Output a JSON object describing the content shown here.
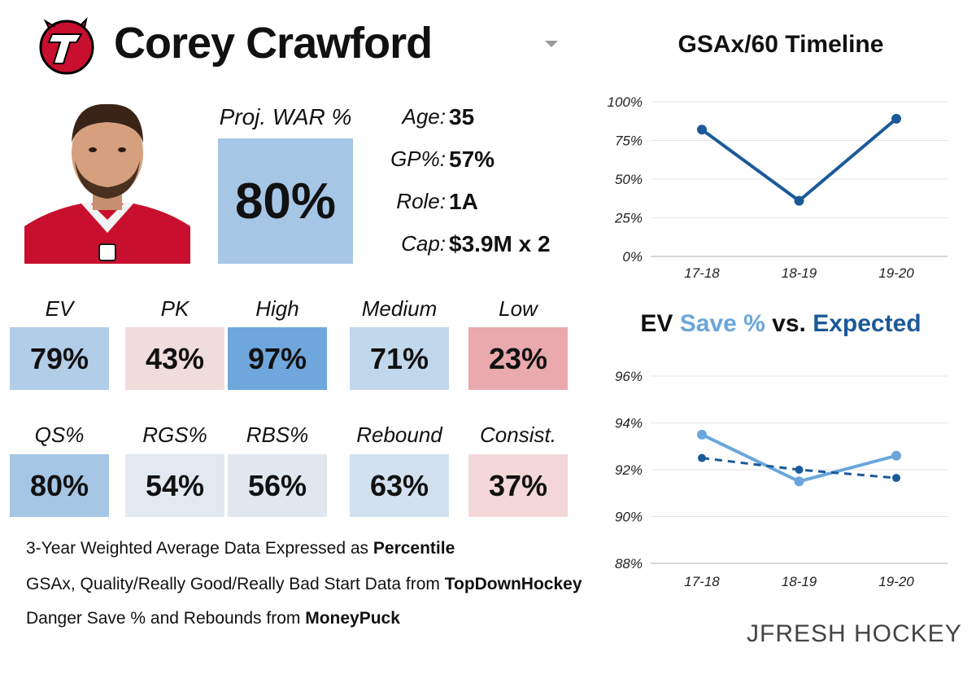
{
  "header": {
    "player_name": "Corey Crawford",
    "team_logo_icon": "devils-logo-icon",
    "photo_icon": "player-headshot-icon"
  },
  "war": {
    "label": "Proj. WAR %",
    "value": "80%",
    "fill": 0.8
  },
  "info": [
    {
      "label": "Age:",
      "value": "35"
    },
    {
      "label": "GP%:",
      "value": "57%"
    },
    {
      "label": "Role:",
      "value": "1A"
    },
    {
      "label": "Cap:",
      "value": "$3.9M x 2"
    }
  ],
  "metrics_row1": [
    {
      "label": "EV",
      "value": "79%",
      "color": "#b2cde8"
    },
    {
      "label": "PK",
      "value": "43%",
      "color": "#f1dcdd"
    },
    {
      "label": "High",
      "value": "97%",
      "color": "#6fa7dd"
    },
    {
      "label": "Medium",
      "value": "71%",
      "color": "#c1d7ec"
    },
    {
      "label": "Low",
      "value": "23%",
      "color": "#e9a9ad"
    }
  ],
  "metrics_row2": [
    {
      "label": "QS%",
      "value": "80%",
      "color": "#a6c6e6"
    },
    {
      "label": "RGS%",
      "value": "54%",
      "color": "#e3e9f0"
    },
    {
      "label": "RBS%",
      "value": "56%",
      "color": "#e0e7ef"
    },
    {
      "label": "Rebound",
      "value": "63%",
      "color": "#d2e1ef"
    },
    {
      "label": "Consist.",
      "value": "37%",
      "color": "#f3d7d9"
    }
  ],
  "footer": {
    "line1_prefix": "3-Year Weighted Average Data Expressed as ",
    "line1_bold": "Percentile",
    "line2_prefix": "GSAx, Quality/Really Good/Really Bad Start Data from ",
    "line2_bold": "TopDownHockey",
    "line3_prefix": "Danger Save % and Rebounds from ",
    "line3_bold": "MoneyPuck"
  },
  "brand": {
    "name": "JFRESH HOCKEY",
    "icon": "jfresh-logo-icon"
  },
  "colors": {
    "dark_blue": "#1b5a99",
    "light_blue": "#6aa6dc"
  },
  "chart_data": [
    {
      "type": "line",
      "title": "GSAx/60 Timeline",
      "categories": [
        "17-18",
        "18-19",
        "19-20"
      ],
      "series": [
        {
          "name": "GSAx/60 percentile",
          "values": [
            82,
            36,
            89
          ],
          "color": "#1b5a99"
        }
      ],
      "ylim": [
        0,
        100
      ],
      "yticks": [
        "0%",
        "25%",
        "50%",
        "75%",
        "100%"
      ],
      "ytick_values": [
        0,
        25,
        50,
        75,
        100
      ],
      "grid": true
    },
    {
      "type": "line",
      "title_parts": [
        "EV ",
        "Save %",
        " vs. ",
        "Expected"
      ],
      "categories": [
        "17-18",
        "18-19",
        "19-20"
      ],
      "series": [
        {
          "name": "Save %",
          "values": [
            93.5,
            91.5,
            92.6
          ],
          "color": "#6aa6dc",
          "style": "solid"
        },
        {
          "name": "Expected",
          "values": [
            92.5,
            92.0,
            91.65
          ],
          "color": "#1b5a99",
          "style": "dashed"
        }
      ],
      "ylim": [
        88,
        96
      ],
      "yticks": [
        "88%",
        "90%",
        "92%",
        "94%",
        "96%"
      ],
      "ytick_values": [
        88,
        90,
        92,
        94,
        96
      ],
      "grid": true
    }
  ]
}
